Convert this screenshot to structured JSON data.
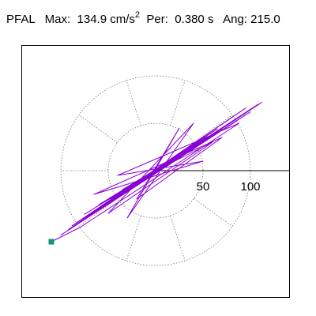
{
  "header": {
    "station": "PFAL",
    "max_label": "Max:",
    "max_value": "134.9",
    "max_unit": "cm/s",
    "max_unit_exp": "2",
    "period_label": "Per:",
    "period_value": "0.380 s",
    "angle_label": "Ang:",
    "angle_value": "215.0"
  },
  "chart_data": {
    "type": "line",
    "title": "PFAL  Max: 134.9 cm/s2  Per: 0.380 s  Ang: 215.0",
    "xlabel": "",
    "ylabel": "",
    "units": "cm/s2",
    "peak_value": 134.9,
    "peak_angle_deg": 215.0,
    "range_rings": [
      50,
      100
    ],
    "tick_labels": [
      "50",
      "100"
    ],
    "polar_grid": "dotted",
    "radial_spokes_deg": [
      0,
      36,
      72,
      108,
      144,
      180,
      216,
      252,
      288,
      324
    ],
    "xlim": [
      -140,
      140
    ],
    "ylim": [
      -140,
      140
    ],
    "end_point": [
      -110,
      -75
    ],
    "series": [
      {
        "values_xy": [
          [
            0,
            0
          ],
          [
            8,
            6
          ],
          [
            -6,
            -4
          ],
          [
            14,
            10
          ],
          [
            -12,
            -7
          ],
          [
            22,
            14
          ],
          [
            -18,
            -10
          ],
          [
            30,
            20
          ],
          [
            -26,
            -16
          ],
          [
            40,
            26
          ],
          [
            -36,
            -22
          ],
          [
            52,
            34
          ],
          [
            -48,
            -30
          ],
          [
            65,
            44
          ],
          [
            -60,
            -40
          ],
          [
            80,
            56
          ],
          [
            -72,
            -48
          ],
          [
            95,
            66
          ],
          [
            -85,
            -56
          ],
          [
            108,
            70
          ],
          [
            -92,
            -62
          ],
          [
            112,
            72
          ],
          [
            -100,
            -68
          ],
          [
            100,
            62
          ],
          [
            -88,
            -58
          ],
          [
            85,
            52
          ],
          [
            -75,
            -46
          ],
          [
            70,
            44
          ],
          [
            -60,
            -36
          ],
          [
            55,
            34
          ],
          [
            -45,
            -28
          ],
          [
            42,
            26
          ],
          [
            -35,
            -20
          ],
          [
            30,
            18
          ],
          [
            -25,
            -14
          ],
          [
            20,
            12
          ],
          [
            -16,
            -9
          ],
          [
            12,
            7
          ],
          [
            -9,
            -5
          ],
          [
            6,
            4
          ],
          [
            -4,
            -2
          ],
          [
            60,
            30
          ],
          [
            -50,
            -45
          ],
          [
            40,
            50
          ],
          [
            -30,
            -50
          ],
          [
            25,
            45
          ],
          [
            -20,
            -30
          ],
          [
            70,
            35
          ],
          [
            -65,
            -25
          ],
          [
            50,
            10
          ],
          [
            -40,
            -5
          ],
          [
            88,
            50
          ],
          [
            -80,
            -60
          ],
          [
            -110,
            -75
          ]
        ]
      }
    ]
  }
}
